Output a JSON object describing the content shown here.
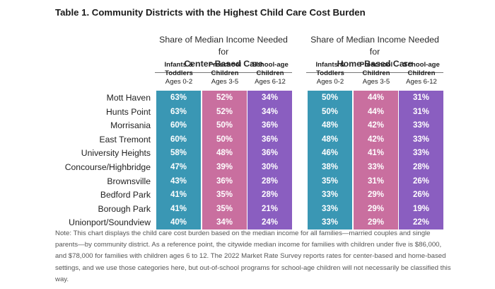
{
  "title": "Table 1. Community Districts with the Highest Child Care Cost Burden",
  "colors": {
    "infants": "#3a97b4",
    "preschool": "#c96f9f",
    "schoolage": "#8a5ec0",
    "label_bg": "#dcdcdc"
  },
  "groups": [
    {
      "line1": "Share of Median Income Needed for",
      "line2": "Center-Based Care"
    },
    {
      "line1": "Share of Median Income Needed for",
      "line2": "Home-Based Care"
    }
  ],
  "columns": [
    {
      "label": "Infants & Toddlers",
      "ages": "Ages 0-2"
    },
    {
      "label": "Preschool Children",
      "ages": "Ages 3-5"
    },
    {
      "label": "School-age Children",
      "ages": "Ages 6-12"
    }
  ],
  "rows": [
    {
      "name": "Mott Haven",
      "values": [
        "63%",
        "52%",
        "34%",
        "50%",
        "44%",
        "31%"
      ]
    },
    {
      "name": "Hunts Point",
      "values": [
        "63%",
        "52%",
        "34%",
        "50%",
        "44%",
        "31%"
      ]
    },
    {
      "name": "Morrisania",
      "values": [
        "60%",
        "50%",
        "36%",
        "48%",
        "42%",
        "33%"
      ]
    },
    {
      "name": "East Tremont",
      "values": [
        "60%",
        "50%",
        "36%",
        "48%",
        "42%",
        "33%"
      ]
    },
    {
      "name": "University Heights",
      "values": [
        "58%",
        "48%",
        "36%",
        "46%",
        "41%",
        "33%"
      ]
    },
    {
      "name": "Concourse/Highbridge",
      "values": [
        "47%",
        "39%",
        "30%",
        "38%",
        "33%",
        "28%"
      ]
    },
    {
      "name": "Brownsville",
      "values": [
        "43%",
        "36%",
        "28%",
        "35%",
        "31%",
        "26%"
      ]
    },
    {
      "name": "Bedford Park",
      "values": [
        "41%",
        "35%",
        "28%",
        "33%",
        "29%",
        "26%"
      ]
    },
    {
      "name": "Borough Park",
      "values": [
        "41%",
        "35%",
        "21%",
        "33%",
        "29%",
        "19%"
      ]
    },
    {
      "name": "Unionport/Soundview",
      "values": [
        "40%",
        "34%",
        "24%",
        "33%",
        "29%",
        "22%"
      ]
    }
  ],
  "note": "Note: This chart displays the child care cost burden based on the median income for all families—married couples and single parents—by community district. As a reference point, the citywide median income for families with children under five is $86,000, and $78,000 for families with children ages 6 to 12. The 2022 Market Rate Survey reports rates for center-based and home-based settings, and we use those categories here, but out-of-school programs for school-age children will not necessarily be classified this way."
}
